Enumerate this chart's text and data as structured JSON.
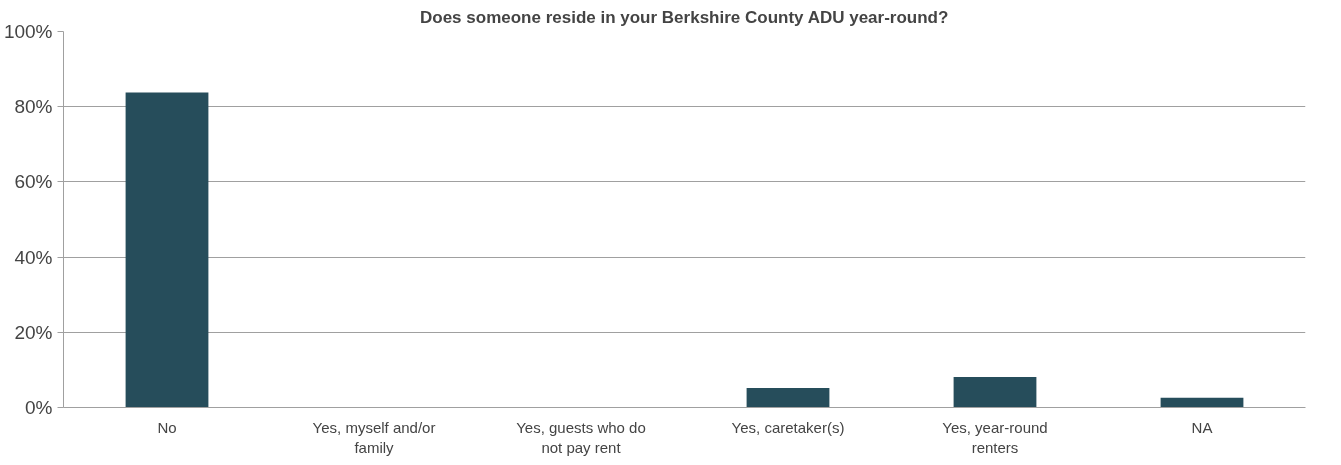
{
  "chart_data": {
    "type": "bar",
    "title": "Does someone reside in your Berkshire County ADU year-round?",
    "categories": [
      "No",
      "Yes, myself and/or family",
      "Yes, guests who do not pay rent",
      "Yes, caretaker(s)",
      "Yes, year-round renters",
      "NA"
    ],
    "values": [
      83.8,
      0,
      0,
      5.2,
      8.1,
      2.6
    ],
    "color": "#264d5b",
    "ylim": [
      0,
      100
    ],
    "yticks": [
      {
        "value": 0,
        "label": "0%"
      },
      {
        "value": 20,
        "label": "20%"
      },
      {
        "value": 40,
        "label": "40%"
      },
      {
        "value": 60,
        "label": "60%"
      },
      {
        "value": 80,
        "label": "80%"
      },
      {
        "value": 100,
        "label": "100%"
      }
    ],
    "grid": "y"
  }
}
